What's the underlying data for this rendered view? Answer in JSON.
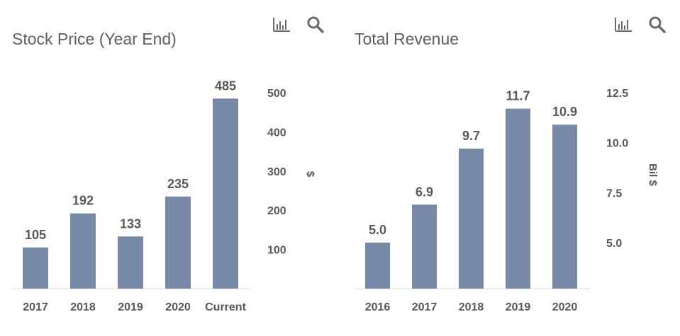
{
  "chart_data": [
    {
      "type": "bar",
      "title": "Stock Price (Year End)",
      "categories": [
        "2017",
        "2018",
        "2019",
        "2020",
        "Current"
      ],
      "values": [
        105,
        192,
        133,
        235,
        485
      ],
      "value_labels": [
        "105",
        "192",
        "133",
        "235",
        "485"
      ],
      "ylabel": "$",
      "yticks": [
        100,
        200,
        300,
        400,
        500
      ],
      "ytick_labels": [
        "100",
        "200",
        "300",
        "400",
        "500"
      ],
      "ylim": [
        0,
        500
      ],
      "grid": false,
      "bar_color": "#7889a7"
    },
    {
      "type": "bar",
      "title": "Total Revenue",
      "categories": [
        "2016",
        "2017",
        "2018",
        "2019",
        "2020"
      ],
      "values": [
        5.0,
        6.9,
        9.7,
        11.7,
        10.9
      ],
      "value_labels": [
        "5.0",
        "6.9",
        "9.7",
        "11.7",
        "10.9"
      ],
      "ylabel": "Bil $",
      "yticks": [
        5.0,
        7.5,
        10.0,
        12.5
      ],
      "ytick_labels": [
        "5.0",
        "7.5",
        "10.0",
        "12.5"
      ],
      "ylim": [
        2.7,
        12.5
      ],
      "grid": false,
      "bar_color": "#7889a7"
    }
  ],
  "toolbar": {
    "chart_icon": "bar-chart-icon",
    "search_icon": "search-icon",
    "icon_color": "#6b6b6b"
  }
}
